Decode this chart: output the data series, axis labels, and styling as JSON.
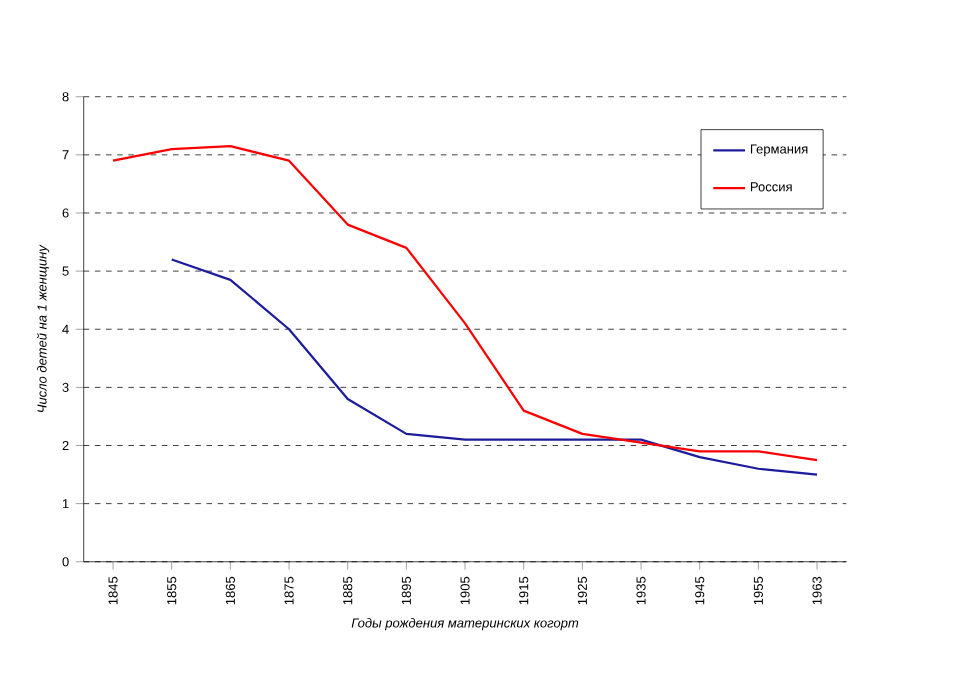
{
  "chart_data": {
    "type": "line",
    "xlabel": "Годы рождения материнских когорт",
    "ylabel": "Число детей на 1 женщину",
    "categories": [
      "1845",
      "1855",
      "1865",
      "1875",
      "1885",
      "1895",
      "1905",
      "1915",
      "1925",
      "1935",
      "1945",
      "1955",
      "1963"
    ],
    "series": [
      {
        "name": "Германия",
        "color": "#1c1c9c",
        "values": [
          null,
          5.2,
          4.85,
          4.0,
          2.8,
          2.2,
          2.1,
          2.1,
          2.1,
          2.1,
          1.8,
          1.6,
          1.5
        ]
      },
      {
        "name": "Россия",
        "color": "#ff0000",
        "values": [
          6.9,
          7.1,
          7.15,
          6.9,
          5.8,
          5.4,
          4.1,
          2.6,
          2.2,
          2.05,
          1.9,
          1.9,
          1.75
        ]
      }
    ],
    "ylim": [
      0,
      8
    ],
    "yticks": [
      0,
      1,
      2,
      3,
      4,
      5,
      6,
      7,
      8
    ],
    "grid": "y",
    "legend": "top right",
    "marker": "none",
    "line_style": "solid"
  }
}
